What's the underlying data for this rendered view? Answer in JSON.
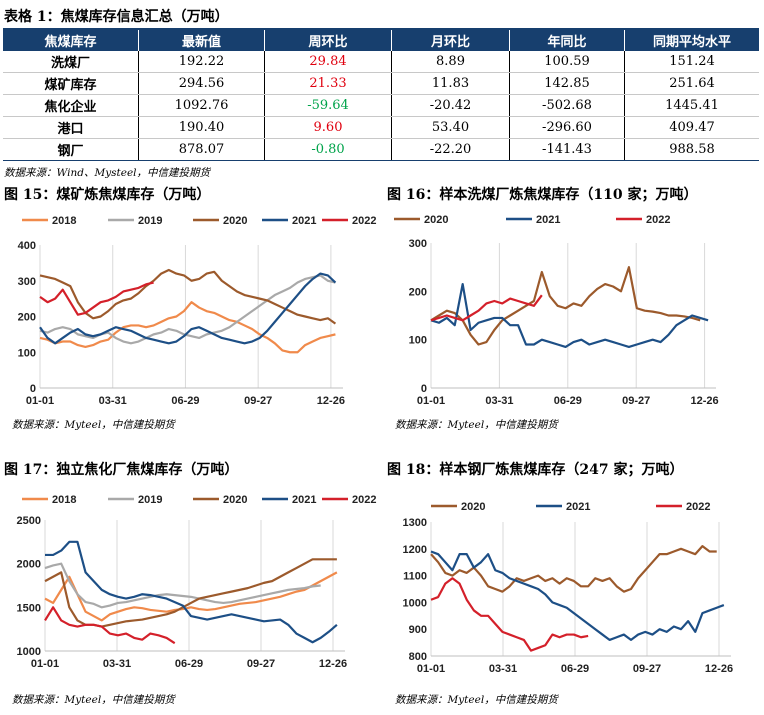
{
  "table": {
    "title": "表格 1：焦煤库存信息汇总（万吨）",
    "headers": [
      "焦煤库存",
      "最新值",
      "周环比",
      "月环比",
      "年同比",
      "同期平均水平"
    ],
    "rows": [
      {
        "name": "洗煤厂",
        "latest": "192.22",
        "wow": "29.84",
        "wow_dir": "up",
        "mom": "8.89",
        "yoy": "100.59",
        "avg": "151.24"
      },
      {
        "name": "煤矿库存",
        "latest": "294.56",
        "wow": "21.33",
        "wow_dir": "up",
        "mom": "11.83",
        "yoy": "142.85",
        "avg": "251.64"
      },
      {
        "name": "焦化企业",
        "latest": "1092.76",
        "wow": "-59.64",
        "wow_dir": "down",
        "mom": "-20.42",
        "yoy": "-502.68",
        "avg": "1445.41"
      },
      {
        "name": "港口",
        "latest": "190.40",
        "wow": "9.60",
        "wow_dir": "up",
        "mom": "53.40",
        "yoy": "-296.60",
        "avg": "409.47"
      },
      {
        "name": "钢厂",
        "latest": "878.07",
        "wow": "-0.80",
        "wow_dir": "down",
        "mom": "-22.20",
        "yoy": "-141.43",
        "avg": "988.58"
      }
    ],
    "source": "数据来源：Wind、Mysteel，中信建投期货"
  },
  "colors": {
    "header_bg": "#173f6e",
    "up": "#e0000f",
    "down": "#00a34a"
  },
  "series_colors": {
    "2018": "#f08a4b",
    "2019": "#a9a9a9",
    "2020": "#9c5a2c",
    "2021": "#1d4f86",
    "2022": "#d4202a"
  },
  "chart_data": [
    {
      "id": "fig15",
      "type": "line",
      "title": "图 15：煤矿炼焦煤库存（万吨）",
      "source": "数据来源：Myteel，中信建投期货",
      "x_ticks": [
        "01-01",
        "03-31",
        "06-29",
        "09-27",
        "12-26"
      ],
      "ylim": [
        0,
        400
      ],
      "y_ticks": [
        0,
        100,
        200,
        300,
        400
      ],
      "x_max": 51,
      "series": [
        {
          "name": "2018",
          "values": [
            140,
            135,
            125,
            130,
            130,
            120,
            115,
            120,
            130,
            135,
            155,
            170,
            175,
            175,
            170,
            175,
            185,
            195,
            200,
            215,
            240,
            225,
            215,
            210,
            200,
            190,
            185,
            175,
            165,
            150,
            140,
            125,
            105,
            100,
            100,
            120,
            130,
            140,
            145,
            150
          ]
        },
        {
          "name": "2019",
          "values": [
            160,
            155,
            165,
            170,
            165,
            150,
            145,
            140,
            150,
            155,
            140,
            130,
            125,
            130,
            140,
            150,
            155,
            165,
            160,
            150,
            145,
            140,
            150,
            155,
            160,
            170,
            185,
            200,
            215,
            230,
            245,
            260,
            270,
            280,
            295,
            305,
            310,
            315,
            300,
            295
          ]
        },
        {
          "name": "2020",
          "values": [
            315,
            310,
            305,
            295,
            285,
            240,
            210,
            195,
            200,
            215,
            235,
            245,
            250,
            265,
            285,
            300,
            320,
            330,
            320,
            315,
            300,
            305,
            320,
            325,
            300,
            285,
            270,
            260,
            255,
            250,
            245,
            235,
            225,
            215,
            205,
            200,
            195,
            190,
            195,
            180
          ]
        },
        {
          "name": "2021",
          "values": [
            170,
            140,
            125,
            140,
            155,
            165,
            150,
            145,
            150,
            160,
            170,
            165,
            160,
            150,
            140,
            135,
            130,
            125,
            130,
            145,
            165,
            170,
            160,
            150,
            140,
            135,
            130,
            125,
            130,
            140,
            160,
            185,
            210,
            235,
            260,
            285,
            305,
            320,
            315,
            295
          ]
        },
        {
          "name": "2022",
          "values": [
            255,
            240,
            250,
            275,
            240,
            205,
            210,
            225,
            240,
            245,
            255,
            270,
            275,
            280,
            290,
            295
          ]
        }
      ]
    },
    {
      "id": "fig16",
      "type": "line",
      "title": "图 16：样本洗煤厂炼焦煤库存（110 家；万吨）",
      "source": "数据来源：Myteel，中信建投期货",
      "x_ticks": [
        "01-01",
        "03-31",
        "06-29",
        "09-27",
        "12-26"
      ],
      "ylim": [
        0,
        300
      ],
      "y_ticks": [
        0,
        100,
        200,
        300
      ],
      "x_max": 51,
      "series": [
        {
          "name": "2020",
          "values": [
            140,
            150,
            160,
            155,
            140,
            110,
            90,
            95,
            120,
            140,
            150,
            160,
            170,
            180,
            240,
            190,
            170,
            165,
            175,
            170,
            190,
            205,
            215,
            210,
            200,
            250,
            165,
            160,
            158,
            155,
            150,
            150,
            148,
            145,
            140
          ]
        },
        {
          "name": "2021",
          "values": [
            140,
            135,
            145,
            130,
            215,
            120,
            135,
            140,
            145,
            145,
            130,
            130,
            90,
            90,
            100,
            95,
            90,
            85,
            95,
            100,
            90,
            95,
            100,
            95,
            90,
            85,
            90,
            95,
            100,
            95,
            110,
            130,
            140,
            150,
            145,
            140
          ]
        },
        {
          "name": "2022",
          "values": [
            140,
            145,
            150,
            145,
            140,
            150,
            160,
            175,
            180,
            175,
            185,
            180,
            175,
            170,
            192
          ]
        }
      ]
    },
    {
      "id": "fig17",
      "type": "line",
      "title": "图 17：独立焦化厂焦煤库存（万吨）",
      "source": "数据来源：Myteel，中信建投期货",
      "x_ticks": [
        "01-01",
        "03-31",
        "06-29",
        "09-27",
        "12-26"
      ],
      "ylim": [
        1000,
        2500
      ],
      "y_ticks": [
        1000,
        1500,
        2000,
        2500
      ],
      "x_max": 51,
      "series": [
        {
          "name": "2018",
          "values": [
            1600,
            1550,
            1700,
            1850,
            1650,
            1450,
            1400,
            1350,
            1420,
            1450,
            1480,
            1500,
            1490,
            1470,
            1460,
            1450,
            1470,
            1480,
            1500,
            1480,
            1470,
            1480,
            1500,
            1520,
            1540,
            1550,
            1560,
            1580,
            1600,
            1620,
            1650,
            1680,
            1700,
            1750,
            1800,
            1850,
            1900
          ]
        },
        {
          "name": "2019",
          "values": [
            1950,
            1980,
            2000,
            1800,
            1650,
            1560,
            1540,
            1500,
            1520,
            1550,
            1560,
            1580,
            1600,
            1620,
            1640,
            1650,
            1640,
            1630,
            1620,
            1600,
            1580,
            1560,
            1550,
            1560,
            1580,
            1600,
            1620,
            1640,
            1660,
            1680,
            1700,
            1710,
            1720,
            1740,
            1750
          ]
        },
        {
          "name": "2020",
          "values": [
            1800,
            1850,
            1900,
            1500,
            1350,
            1300,
            1300,
            1280,
            1300,
            1320,
            1340,
            1350,
            1360,
            1380,
            1400,
            1420,
            1450,
            1500,
            1550,
            1600,
            1620,
            1640,
            1660,
            1680,
            1700,
            1720,
            1750,
            1780,
            1800,
            1850,
            1900,
            1950,
            2000,
            2050,
            2050,
            2050,
            2050
          ]
        },
        {
          "name": "2021",
          "values": [
            2100,
            2100,
            2150,
            2250,
            2250,
            1900,
            1800,
            1700,
            1650,
            1620,
            1600,
            1620,
            1650,
            1640,
            1620,
            1600,
            1560,
            1520,
            1400,
            1380,
            1360,
            1380,
            1400,
            1420,
            1400,
            1380,
            1360,
            1340,
            1350,
            1360,
            1300,
            1200,
            1150,
            1100,
            1150,
            1220,
            1300
          ]
        },
        {
          "name": "2022",
          "values": [
            1350,
            1500,
            1350,
            1300,
            1280,
            1300,
            1300,
            1280,
            1200,
            1180,
            1200,
            1150,
            1130,
            1200,
            1180,
            1150,
            1090
          ]
        }
      ]
    },
    {
      "id": "fig18",
      "type": "line",
      "title": "图 18：样本钢厂炼焦煤库存（247 家；万吨）",
      "source": "数据来源：Myteel，中信建投期货",
      "x_ticks": [
        "01-01",
        "03-31",
        "06-29",
        "09-27",
        "12-26"
      ],
      "ylim": [
        800,
        1300
      ],
      "y_ticks": [
        800,
        900,
        1000,
        1100,
        1200,
        1300
      ],
      "x_max": 51,
      "series": [
        {
          "name": "2020",
          "values": [
            1180,
            1150,
            1110,
            1100,
            1120,
            1110,
            1130,
            1100,
            1060,
            1050,
            1040,
            1060,
            1090,
            1080,
            1090,
            1100,
            1080,
            1090,
            1070,
            1090,
            1080,
            1060,
            1060,
            1090,
            1080,
            1090,
            1060,
            1040,
            1050,
            1090,
            1120,
            1150,
            1180,
            1180,
            1190,
            1200,
            1190,
            1180,
            1210,
            1190,
            1190
          ]
        },
        {
          "name": "2021",
          "values": [
            1190,
            1180,
            1150,
            1120,
            1180,
            1180,
            1130,
            1150,
            1180,
            1120,
            1110,
            1090,
            1080,
            1070,
            1060,
            1050,
            1030,
            1000,
            990,
            980,
            960,
            940,
            920,
            900,
            880,
            860,
            870,
            880,
            860,
            880,
            890,
            880,
            900,
            890,
            910,
            900,
            930,
            890,
            960,
            970,
            980,
            990
          ]
        },
        {
          "name": "2022",
          "values": [
            1010,
            1020,
            1070,
            1090,
            1070,
            1010,
            970,
            950,
            950,
            920,
            890,
            880,
            870,
            860,
            820,
            830,
            840,
            880,
            870,
            880,
            880,
            870,
            875
          ]
        }
      ]
    }
  ]
}
